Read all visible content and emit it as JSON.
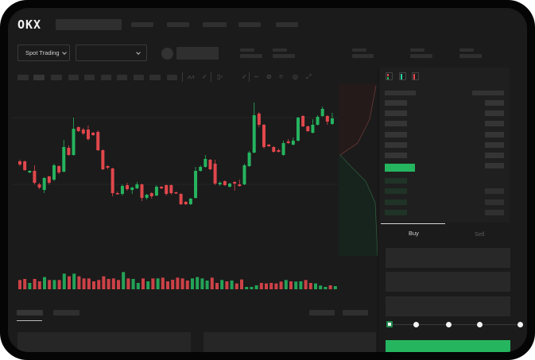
{
  "header": {
    "logo": "OKX",
    "logo_color": "#f2f2f2"
  },
  "trading_bar": {
    "mode_dropdown": "Spot Trading",
    "pair_dropdown": ""
  },
  "orderbook": {
    "highlight_color": "#25b55e"
  },
  "order_form": {
    "tabs": [
      {
        "label": "Buy",
        "active": true
      },
      {
        "label": "Sell",
        "active": false
      }
    ],
    "slider_percent": 0,
    "submit_color": "#25b55e"
  },
  "colors": {
    "up": "#26b35f",
    "down": "#e0474c",
    "background": "#1b1b1b"
  },
  "chart_data": {
    "type": "candlestick",
    "title": "",
    "xlabel": "",
    "ylabel": "",
    "grid": true,
    "candles": [
      [
        97,
        99,
        91,
        93
      ],
      [
        97,
        98,
        85,
        86
      ],
      [
        83,
        86,
        82,
        85
      ],
      [
        85,
        92,
        68,
        70
      ],
      [
        68,
        70,
        62,
        64
      ],
      [
        61,
        77,
        57,
        76
      ],
      [
        78,
        79,
        68,
        70
      ],
      [
        74,
        94,
        72,
        92
      ],
      [
        91,
        92,
        81,
        83
      ],
      [
        84,
        124,
        83,
        115
      ],
      [
        114,
        117,
        104,
        105
      ],
      [
        105,
        152,
        104,
        138
      ],
      [
        140,
        141,
        134,
        135
      ],
      [
        137,
        139,
        130,
        132
      ],
      [
        137,
        142,
        123,
        125
      ],
      [
        133,
        134,
        129,
        130
      ],
      [
        134,
        136,
        110,
        111
      ],
      [
        111,
        112,
        86,
        87
      ],
      [
        91,
        92,
        87,
        89
      ],
      [
        88,
        89,
        53,
        57
      ],
      [
        57,
        59,
        55,
        56
      ],
      [
        56,
        68,
        54,
        66
      ],
      [
        67,
        70,
        60,
        62
      ],
      [
        61,
        65,
        56,
        64
      ],
      [
        63,
        71,
        62,
        68
      ],
      [
        68,
        69,
        47,
        51
      ],
      [
        51,
        56,
        49,
        55
      ],
      [
        57,
        58,
        50,
        53
      ],
      [
        54,
        67,
        53,
        65
      ],
      [
        65,
        66,
        62,
        63
      ],
      [
        67,
        68,
        54,
        56
      ],
      [
        67,
        68,
        55,
        57
      ],
      [
        58,
        59,
        56,
        57
      ],
      [
        56,
        57,
        42,
        43
      ],
      [
        46,
        47,
        42,
        43
      ],
      [
        43,
        51,
        42,
        50
      ],
      [
        51,
        90,
        50,
        85
      ],
      [
        85,
        92,
        84,
        90
      ],
      [
        90,
        105,
        89,
        100
      ],
      [
        99,
        100,
        86,
        87
      ],
      [
        94,
        99,
        67,
        69
      ],
      [
        68,
        72,
        66,
        70
      ],
      [
        72,
        73,
        66,
        67
      ],
      [
        65,
        70,
        64,
        69
      ],
      [
        71,
        72,
        60,
        69
      ],
      [
        68,
        74,
        65,
        66
      ],
      [
        68,
        94,
        67,
        92
      ],
      [
        91,
        110,
        90,
        108
      ],
      [
        108,
        171,
        107,
        155
      ],
      [
        157,
        159,
        140,
        143
      ],
      [
        143,
        144,
        113,
        115
      ],
      [
        118,
        119,
        115,
        116
      ],
      [
        115,
        116,
        108,
        109
      ],
      [
        111,
        113,
        108,
        109
      ],
      [
        105,
        123,
        104,
        120
      ],
      [
        122,
        125,
        119,
        120
      ],
      [
        118,
        127,
        117,
        123
      ],
      [
        123,
        153,
        122,
        152
      ],
      [
        154,
        155,
        140,
        141
      ],
      [
        141,
        142,
        134,
        135
      ],
      [
        133,
        150,
        132,
        143
      ],
      [
        143,
        155,
        142,
        153
      ],
      [
        154,
        166,
        153,
        163
      ],
      [
        154,
        155,
        143,
        147
      ],
      [
        144,
        158,
        143,
        151
      ]
    ],
    "candle_fields": [
      "open",
      "high",
      "low",
      "close"
    ],
    "volume": [
      35,
      39,
      24,
      39,
      30,
      46,
      35,
      35,
      35,
      59,
      49,
      59,
      49,
      41,
      41,
      30,
      35,
      49,
      39,
      41,
      35,
      65,
      41,
      39,
      24,
      41,
      30,
      41,
      41,
      44,
      30,
      36,
      44,
      41,
      33,
      41,
      46,
      41,
      33,
      44,
      24,
      35,
      30,
      33,
      22,
      37,
      9,
      9,
      15,
      24,
      22,
      24,
      22,
      29,
      35,
      30,
      29,
      30,
      35,
      24,
      22,
      14,
      9,
      15,
      12
    ]
  }
}
